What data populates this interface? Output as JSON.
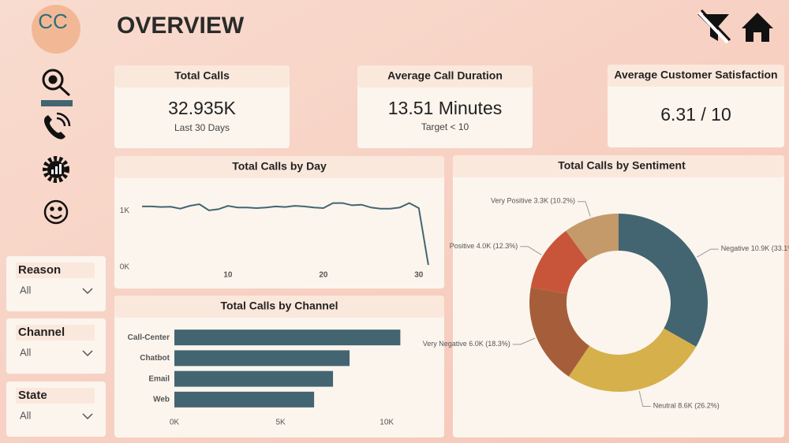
{
  "header": {
    "logo": "CC",
    "title": "OVERVIEW"
  },
  "kpis": [
    {
      "title": "Total Calls",
      "value": "32.935K",
      "note": "Last 30 Days"
    },
    {
      "title": "Average Call Duration",
      "value": "13.51 Minutes",
      "note": "Target < 10"
    },
    {
      "title": "Average Customer Satisfaction",
      "value": "6.31 / 10"
    }
  ],
  "filters": [
    {
      "label": "Reason",
      "value": "All"
    },
    {
      "label": "Channel",
      "value": "All"
    },
    {
      "label": "State",
      "value": "All"
    }
  ],
  "chart_data": [
    {
      "type": "line",
      "title": "Total Calls by Day",
      "color": "#436571",
      "x": [
        1,
        2,
        3,
        4,
        5,
        6,
        7,
        8,
        9,
        10,
        11,
        12,
        13,
        14,
        15,
        16,
        17,
        18,
        19,
        20,
        21,
        22,
        23,
        24,
        25,
        26,
        27,
        28,
        29,
        30,
        31
      ],
      "values": [
        1080,
        1080,
        1070,
        1075,
        1040,
        1090,
        1120,
        1010,
        1030,
        1090,
        1060,
        1060,
        1050,
        1060,
        1080,
        1070,
        1090,
        1080,
        1060,
        1050,
        1140,
        1140,
        1100,
        1110,
        1060,
        1040,
        1040,
        1060,
        1140,
        1050,
        40
      ],
      "xlim": [
        0,
        32
      ],
      "xticks": [
        10,
        20,
        30
      ],
      "ylim": [
        0,
        1400
      ],
      "yticks": [
        {
          "value": 0,
          "label": "0K"
        },
        {
          "value": 1000,
          "label": "1K"
        }
      ]
    },
    {
      "type": "hbar",
      "title": "Total Calls by Channel",
      "color": "#436571",
      "categories": [
        "Call-Center",
        "Chatbot",
        "Email",
        "Web"
      ],
      "values": [
        10640,
        8250,
        7470,
        6580
      ],
      "xlim": [
        0,
        12000
      ],
      "xticks": [
        {
          "value": 0,
          "label": "0K"
        },
        {
          "value": 5000,
          "label": "5K"
        },
        {
          "value": 10000,
          "label": "10K"
        }
      ]
    },
    {
      "type": "donut",
      "title": "Total Calls by Sentiment",
      "categories": [
        "Negative",
        "Neutral",
        "Very Negative",
        "Positive",
        "Very Positive"
      ],
      "values": [
        10900,
        8600,
        6000,
        4000,
        3300
      ],
      "value_labels": [
        "10.9K (33.1%)",
        "8.6K (26.2%)",
        "6.0K (18.3%)",
        "4.0K (12.3%)",
        "3.3K (10.2%)"
      ],
      "colors": [
        "#436571",
        "#d6b04a",
        "#a65e3a",
        "#c8553a",
        "#c49a6a"
      ]
    }
  ]
}
